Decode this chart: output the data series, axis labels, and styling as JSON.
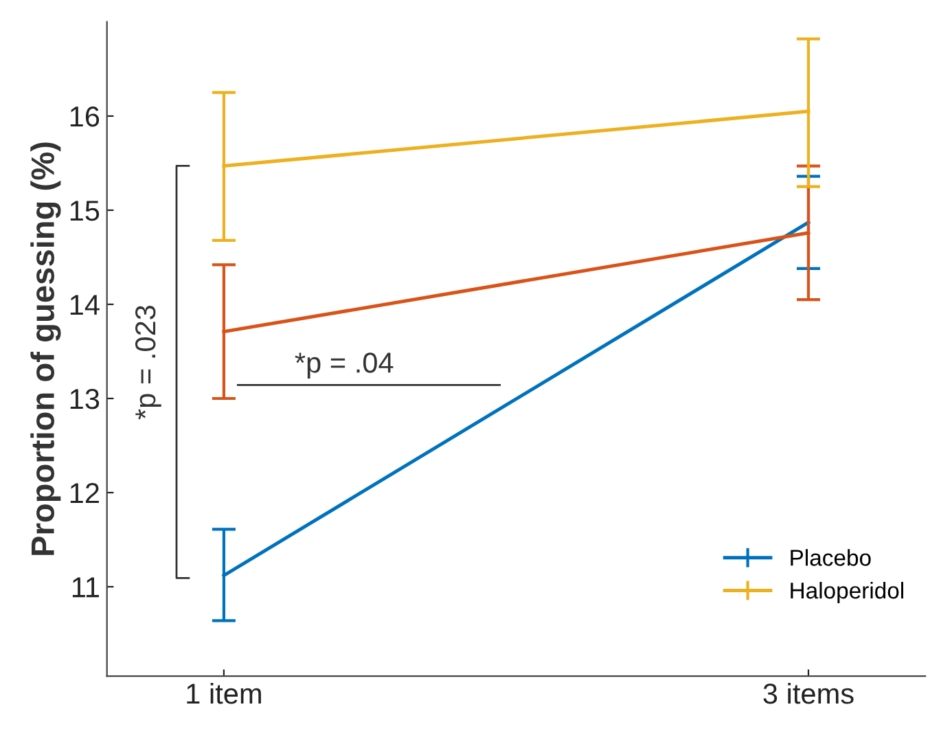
{
  "chart_data": {
    "type": "line",
    "ylabel": "Proportion of guessing (%)",
    "categories": [
      "1 item",
      "3 items"
    ],
    "series": [
      {
        "name": "Placebo",
        "color": "#0072bd",
        "values": [
          11.12,
          14.87
        ],
        "errors": [
          [
            10.64,
            11.61
          ],
          [
            14.38,
            15.36
          ]
        ]
      },
      {
        "color": "#d95319",
        "values": [
          13.71,
          14.76
        ],
        "errors": [
          [
            13.0,
            14.42
          ],
          [
            14.05,
            15.47
          ]
        ]
      },
      {
        "name": "Haloperidol",
        "color": "#edb120",
        "values": [
          15.47,
          16.05
        ],
        "errors": [
          [
            14.68,
            16.25
          ],
          [
            15.25,
            16.82
          ]
        ]
      }
    ],
    "ylim": [
      10.05,
      17
    ],
    "yticks": [
      11,
      12,
      13,
      14,
      15,
      16
    ],
    "grid": false,
    "legend": "bottom right",
    "marker": "none",
    "line_style": "solid",
    "annotations": [
      "*p = .04",
      "*p = .023"
    ]
  }
}
